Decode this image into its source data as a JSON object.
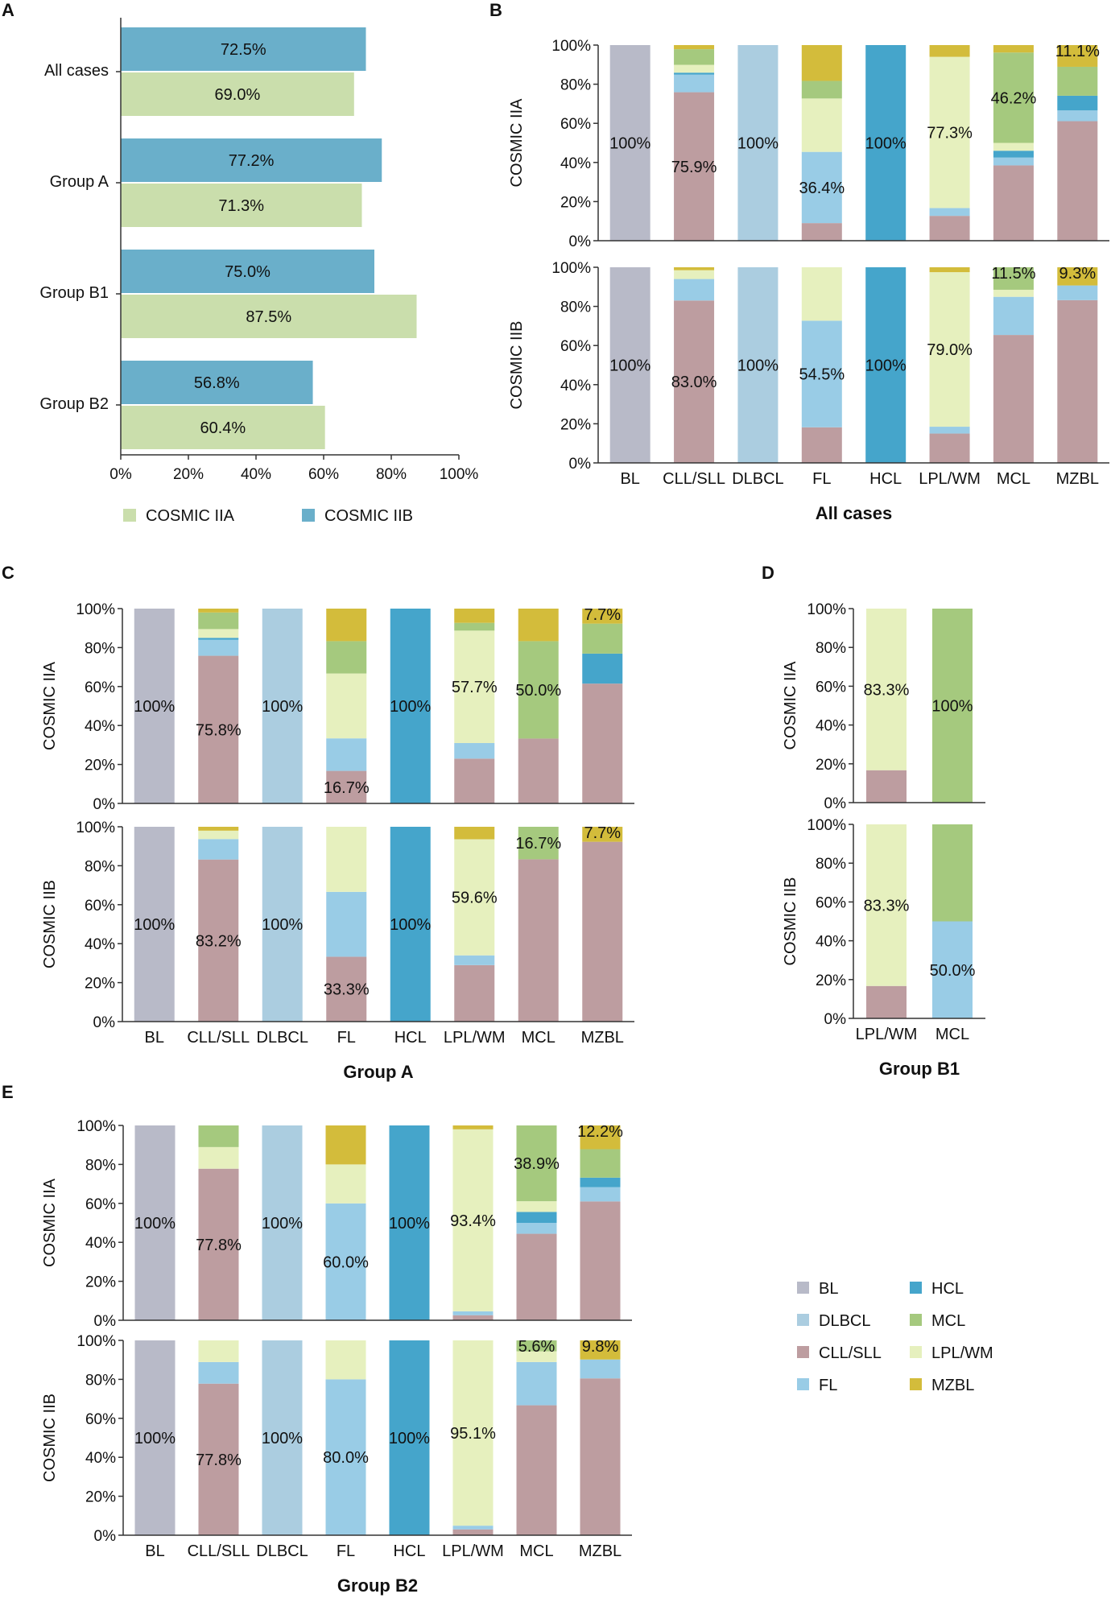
{
  "colors": {
    "BL": "#b8bac8",
    "DLBCL": "#abcde0",
    "CLL/SLL": "#bd9da0",
    "FL": "#99cce6",
    "HCL": "#45a5cb",
    "MCL": "#a5c97e",
    "LPL/WM": "#e6f0be",
    "MZBL": "#d3bc3b",
    "COSMIC IIA": "#cadeac",
    "COSMIC IIB": "#6aafca"
  },
  "legend": {
    "panelA": [
      "COSMIC IIA",
      "COSMIC IIB"
    ],
    "classes": [
      "BL",
      "HCL",
      "DLBCL",
      "MCL",
      "CLL/SLL",
      "LPL/WM",
      "FL",
      "MZBL"
    ]
  },
  "chart_data": [
    {
      "panel": "A",
      "type": "bar",
      "orientation": "horizontal",
      "categories": [
        "All cases",
        "Group A",
        "Group B1",
        "Group B2"
      ],
      "series": [
        {
          "name": "COSMIC IIB",
          "values": [
            72.5,
            77.2,
            75.0,
            56.8
          ],
          "labels": [
            "72.5%",
            "77.2%",
            "75.0%",
            "56.8%"
          ]
        },
        {
          "name": "COSMIC IIA",
          "values": [
            69.0,
            71.3,
            87.5,
            60.4
          ],
          "labels": [
            "69.0%",
            "71.3%",
            "87.5%",
            "60.4%"
          ]
        }
      ],
      "xticks": [
        "0%",
        "20%",
        "40%",
        "60%",
        "80%",
        "100%"
      ],
      "xlim": [
        0,
        100
      ]
    },
    {
      "panel": "B",
      "title": "All cases",
      "type": "bar",
      "stacked": true,
      "categories": [
        "BL",
        "CLL/SLL",
        "DLBCL",
        "FL",
        "HCL",
        "LPL/WM",
        "MCL",
        "MZBL"
      ],
      "yticks": [
        "0%",
        "20%",
        "40%",
        "60%",
        "80%",
        "100%"
      ],
      "subplots": [
        {
          "ylabel": "COSMIC IIA",
          "stacks": [
            [
              [
                "BL",
                100
              ]
            ],
            [
              [
                "CLL/SLL",
                75.9
              ],
              [
                "FL",
                9
              ],
              [
                "HCL",
                1
              ],
              [
                "LPL/WM",
                4
              ],
              [
                "MCL",
                8
              ],
              [
                "MZBL",
                2.1
              ]
            ],
            [
              [
                "DLBCL",
                100
              ]
            ],
            [
              [
                "CLL/SLL",
                9
              ],
              [
                "FL",
                36.4
              ],
              [
                "LPL/WM",
                27.3
              ],
              [
                "MCL",
                9
              ],
              [
                "MZBL",
                18.3
              ]
            ],
            [
              [
                "HCL",
                100
              ]
            ],
            [
              [
                "CLL/SLL",
                12.7
              ],
              [
                "FL",
                4
              ],
              [
                "LPL/WM",
                77.3
              ],
              [
                "MZBL",
                6
              ]
            ],
            [
              [
                "CLL/SLL",
                38.5
              ],
              [
                "FL",
                4
              ],
              [
                "HCL",
                3.5
              ],
              [
                "LPL/WM",
                4
              ],
              [
                "MCL",
                46.2
              ],
              [
                "MZBL",
                3.8
              ]
            ],
            [
              [
                "CLL/SLL",
                61.1
              ],
              [
                "FL",
                5.5
              ],
              [
                "HCL",
                7.5
              ],
              [
                "MCL",
                14.8
              ],
              [
                "MZBL",
                11.1
              ]
            ]
          ],
          "labels": [
            "100%",
            "75.9%",
            "100%",
            "36.4%",
            "100%",
            "77.3%",
            "46.2%",
            "11.1%"
          ]
        },
        {
          "ylabel": "COSMIC IIB",
          "stacks": [
            [
              [
                "BL",
                100
              ]
            ],
            [
              [
                "CLL/SLL",
                83.0
              ],
              [
                "FL",
                11
              ],
              [
                "LPL/WM",
                4.5
              ],
              [
                "MZBL",
                1.5
              ]
            ],
            [
              [
                "DLBCL",
                100
              ]
            ],
            [
              [
                "CLL/SLL",
                18.2
              ],
              [
                "FL",
                54.5
              ],
              [
                "LPL/WM",
                27.3
              ]
            ],
            [
              [
                "HCL",
                100
              ]
            ],
            [
              [
                "CLL/SLL",
                15
              ],
              [
                "FL",
                3.5
              ],
              [
                "LPL/WM",
                79.0
              ],
              [
                "MZBL",
                2.5
              ]
            ],
            [
              [
                "CLL/SLL",
                65.4
              ],
              [
                "FL",
                19.5
              ],
              [
                "LPL/WM",
                3.6
              ],
              [
                "MCL",
                11.5
              ]
            ],
            [
              [
                "CLL/SLL",
                83.2
              ],
              [
                "FL",
                7.5
              ],
              [
                "MZBL",
                9.3
              ]
            ]
          ],
          "labels": [
            "100%",
            "83.0%",
            "100%",
            "54.5%",
            "100%",
            "79.0%",
            "11.5%",
            "9.3%"
          ]
        }
      ]
    },
    {
      "panel": "C",
      "title": "Group A",
      "type": "bar",
      "stacked": true,
      "categories": [
        "BL",
        "CLL/SLL",
        "DLBCL",
        "FL",
        "HCL",
        "LPL/WM",
        "MCL",
        "MZBL"
      ],
      "yticks": [
        "0%",
        "20%",
        "40%",
        "60%",
        "80%",
        "100%"
      ],
      "subplots": [
        {
          "ylabel": "COSMIC IIA",
          "stacks": [
            [
              [
                "BL",
                100
              ]
            ],
            [
              [
                "CLL/SLL",
                75.8
              ],
              [
                "FL",
                8.2
              ],
              [
                "HCL",
                1
              ],
              [
                "LPL/WM",
                4.5
              ],
              [
                "MCL",
                8.5
              ],
              [
                "MZBL",
                2
              ]
            ],
            [
              [
                "DLBCL",
                100
              ]
            ],
            [
              [
                "CLL/SLL",
                16.7
              ],
              [
                "FL",
                16.7
              ],
              [
                "LPL/WM",
                33.3
              ],
              [
                "MCL",
                16.6
              ],
              [
                "MZBL",
                16.7
              ]
            ],
            [
              [
                "HCL",
                100
              ]
            ],
            [
              [
                "CLL/SLL",
                23
              ],
              [
                "FL",
                8
              ],
              [
                "LPL/WM",
                57.7
              ],
              [
                "MCL",
                4
              ],
              [
                "MZBL",
                7.3
              ]
            ],
            [
              [
                "CLL/SLL",
                33.3
              ],
              [
                "MCL",
                50.0
              ],
              [
                "MZBL",
                16.7
              ]
            ],
            [
              [
                "CLL/SLL",
                61.5
              ],
              [
                "HCL",
                15.4
              ],
              [
                "MCL",
                15.4
              ],
              [
                "MZBL",
                7.7
              ]
            ]
          ],
          "labels": [
            "100%",
            "75.8%",
            "100%",
            "16.7%",
            "100%",
            "57.7%",
            "50.0%",
            "7.7%"
          ]
        },
        {
          "ylabel": "COSMIC IIB",
          "stacks": [
            [
              [
                "BL",
                100
              ]
            ],
            [
              [
                "CLL/SLL",
                83.2
              ],
              [
                "FL",
                10.5
              ],
              [
                "LPL/WM",
                4.3
              ],
              [
                "MZBL",
                2
              ]
            ],
            [
              [
                "DLBCL",
                100
              ]
            ],
            [
              [
                "CLL/SLL",
                33.3
              ],
              [
                "FL",
                33.3
              ],
              [
                "LPL/WM",
                33.4
              ]
            ],
            [
              [
                "HCL",
                100
              ]
            ],
            [
              [
                "CLL/SLL",
                29
              ],
              [
                "FL",
                5
              ],
              [
                "LPL/WM",
                59.6
              ],
              [
                "MZBL",
                6.4
              ]
            ],
            [
              [
                "CLL/SLL",
                83.3
              ],
              [
                "MCL",
                16.7
              ]
            ],
            [
              [
                "CLL/SLL",
                92.3
              ],
              [
                "MZBL",
                7.7
              ]
            ]
          ],
          "labels": [
            "100%",
            "83.2%",
            "100%",
            "33.3%",
            "100%",
            "59.6%",
            "16.7%",
            "7.7%"
          ]
        }
      ]
    },
    {
      "panel": "D",
      "title": "Group B1",
      "type": "bar",
      "stacked": true,
      "categories": [
        "LPL/WM",
        "MCL"
      ],
      "yticks": [
        "0%",
        "20%",
        "40%",
        "60%",
        "80%",
        "100%"
      ],
      "subplots": [
        {
          "ylabel": "COSMIC IIA",
          "stacks": [
            [
              [
                "CLL/SLL",
                16.7
              ],
              [
                "LPL/WM",
                83.3
              ]
            ],
            [
              [
                "MCL",
                100
              ]
            ]
          ],
          "labels": [
            "83.3%",
            "100%"
          ]
        },
        {
          "ylabel": "COSMIC IIB",
          "stacks": [
            [
              [
                "CLL/SLL",
                16.7
              ],
              [
                "LPL/WM",
                83.3
              ]
            ],
            [
              [
                "FL",
                50.0
              ],
              [
                "MCL",
                50.0
              ]
            ]
          ],
          "labels": [
            "83.3%",
            "50.0%"
          ]
        }
      ]
    },
    {
      "panel": "E",
      "title": "Group B2",
      "type": "bar",
      "stacked": true,
      "categories": [
        "BL",
        "CLL/SLL",
        "DLBCL",
        "FL",
        "HCL",
        "LPL/WM",
        "MCL",
        "MZBL"
      ],
      "yticks": [
        "0%",
        "20%",
        "40%",
        "60%",
        "80%",
        "100%"
      ],
      "subplots": [
        {
          "ylabel": "COSMIC IIA",
          "stacks": [
            [
              [
                "BL",
                100
              ]
            ],
            [
              [
                "CLL/SLL",
                77.8
              ],
              [
                "LPL/WM",
                11.1
              ],
              [
                "MCL",
                11.1
              ]
            ],
            [
              [
                "DLBCL",
                100
              ]
            ],
            [
              [
                "FL",
                60.0
              ],
              [
                "LPL/WM",
                20.0
              ],
              [
                "MZBL",
                20.0
              ]
            ],
            [
              [
                "HCL",
                100
              ]
            ],
            [
              [
                "CLL/SLL",
                2.6
              ],
              [
                "FL",
                2
              ],
              [
                "LPL/WM",
                93.4
              ],
              [
                "MZBL",
                2
              ]
            ],
            [
              [
                "CLL/SLL",
                44.4
              ],
              [
                "FL",
                5.6
              ],
              [
                "HCL",
                5.6
              ],
              [
                "LPL/WM",
                5.5
              ],
              [
                "MCL",
                38.9
              ]
            ],
            [
              [
                "CLL/SLL",
                61
              ],
              [
                "FL",
                7.3
              ],
              [
                "HCL",
                4.9
              ],
              [
                "MCL",
                14.6
              ],
              [
                "MZBL",
                12.2
              ]
            ]
          ],
          "labels": [
            "100%",
            "77.8%",
            "100%",
            "60.0%",
            "100%",
            "93.4%",
            "38.9%",
            "12.2%"
          ]
        },
        {
          "ylabel": "COSMIC IIB",
          "stacks": [
            [
              [
                "BL",
                100
              ]
            ],
            [
              [
                "CLL/SLL",
                77.8
              ],
              [
                "FL",
                11.1
              ],
              [
                "LPL/WM",
                11.1
              ]
            ],
            [
              [
                "DLBCL",
                100
              ]
            ],
            [
              [
                "FL",
                80.0
              ],
              [
                "LPL/WM",
                20.0
              ]
            ],
            [
              [
                "HCL",
                100
              ]
            ],
            [
              [
                "CLL/SLL",
                3
              ],
              [
                "FL",
                1.9
              ],
              [
                "LPL/WM",
                95.1
              ]
            ],
            [
              [
                "CLL/SLL",
                66.7
              ],
              [
                "FL",
                22.2
              ],
              [
                "LPL/WM",
                5.5
              ],
              [
                "MCL",
                5.6
              ]
            ],
            [
              [
                "CLL/SLL",
                80.5
              ],
              [
                "FL",
                9.7
              ],
              [
                "MZBL",
                9.8
              ]
            ]
          ],
          "labels": [
            "100%",
            "77.8%",
            "100%",
            "80.0%",
            "100%",
            "95.1%",
            "5.6%",
            "9.8%"
          ]
        }
      ]
    }
  ]
}
